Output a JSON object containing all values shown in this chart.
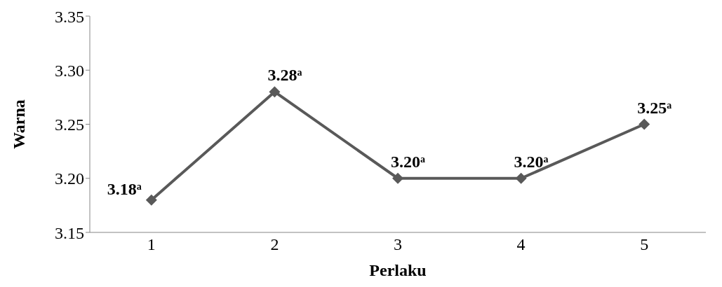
{
  "chart_data": {
    "type": "line",
    "xlabel": "Perlaku",
    "ylabel": "Warna",
    "categories": [
      "1",
      "2",
      "3",
      "4",
      "5"
    ],
    "series": [
      {
        "color": "#595959",
        "values": [
          3.18,
          3.28,
          3.2,
          3.2,
          3.25
        ],
        "value_labels": [
          "3.18$^{a}$",
          "3.28$^{a}$",
          "3.20$^{a}$",
          "3.20$^{a}$",
          "3.25$^{a}$"
        ]
      }
    ],
    "ylim": [
      3.15,
      3.35
    ],
    "yticks": [
      {
        "value": 3.15,
        "label": "3.15"
      },
      {
        "value": 3.2,
        "label": "3.20"
      },
      {
        "value": 3.25,
        "label": "3.25"
      },
      {
        "value": 3.3,
        "label": "3.30"
      },
      {
        "value": 3.35,
        "label": "3.35"
      }
    ],
    "grid": false,
    "legend": false,
    "marker": "diamond",
    "line_style": "solid"
  }
}
